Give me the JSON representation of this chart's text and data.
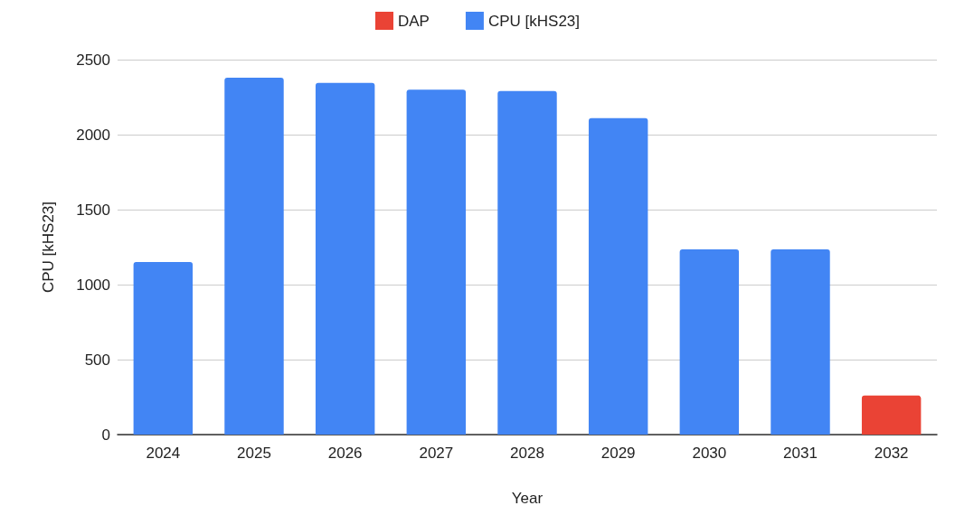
{
  "chart_data": {
    "type": "bar",
    "xlabel": "Year",
    "ylabel": "CPU [kHS23]",
    "categories": [
      "2024",
      "2025",
      "2026",
      "2027",
      "2028",
      "2029",
      "2030",
      "2031",
      "2032"
    ],
    "series": [
      {
        "name": "DAP",
        "color": "#ea4335",
        "values": [
          null,
          null,
          null,
          null,
          null,
          null,
          null,
          null,
          260
        ]
      },
      {
        "name": "CPU [kHS23]",
        "color": "#4285f4",
        "values": [
          1150,
          2380,
          2345,
          2300,
          2290,
          2110,
          1235,
          1235,
          null
        ]
      }
    ],
    "ylim": [
      0,
      2500
    ],
    "yticks": [
      0,
      500,
      1000,
      1500,
      2000,
      2500
    ],
    "grid": "y",
    "legend": "top"
  }
}
